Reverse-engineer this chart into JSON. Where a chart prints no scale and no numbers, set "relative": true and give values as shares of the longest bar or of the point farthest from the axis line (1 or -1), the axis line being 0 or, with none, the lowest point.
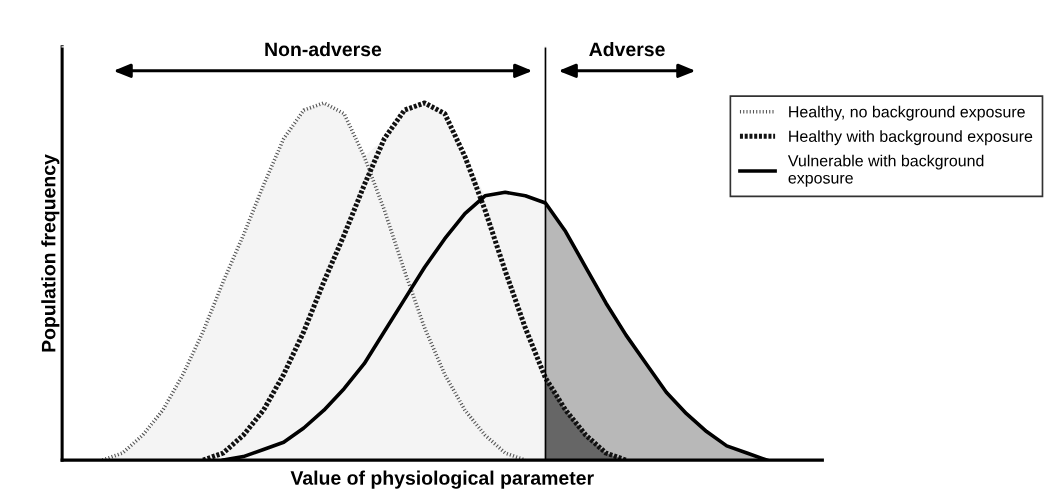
{
  "chart_data": {
    "type": "line",
    "relative": true,
    "xlabel": "Value of physiological parameter",
    "ylabel": "Population frequency",
    "categories": [
      null,
      null,
      null,
      null,
      null,
      null,
      null,
      null,
      null,
      null,
      null,
      null,
      null,
      null,
      null,
      null,
      null,
      null,
      null,
      null,
      null,
      null,
      null,
      null,
      null,
      null,
      null,
      null,
      null,
      null,
      null,
      null,
      null,
      null,
      null,
      null,
      null,
      null
    ],
    "series": [
      {
        "type": "area",
        "color": "#f4f4f4",
        "values": [
          null,
          null,
          0,
          0.02,
          0.07,
          0.14,
          0.24,
          0.36,
          0.5,
          0.63,
          0.77,
          0.9,
          0.98,
          1,
          0.97,
          0.85,
          0.9,
          0.98,
          1,
          0.97,
          0.85,
          0.74,
          0.75,
          0.74,
          0.72,
          null,
          null,
          null,
          null,
          null,
          null,
          null,
          null,
          null,
          null,
          null,
          null,
          null
        ]
      },
      {
        "type": "area",
        "color": "#b8b8b8",
        "values": [
          null,
          null,
          null,
          null,
          null,
          null,
          null,
          null,
          null,
          null,
          null,
          null,
          null,
          null,
          null,
          null,
          null,
          null,
          null,
          null,
          null,
          null,
          null,
          null,
          0.72,
          0.64,
          0.54,
          0.44,
          0.35,
          0.27,
          0.19,
          0.13,
          0.08,
          0.04,
          0.02,
          0,
          null,
          null
        ]
      },
      {
        "type": "area",
        "color": "#666666",
        "values": [
          null,
          null,
          null,
          null,
          null,
          null,
          null,
          null,
          null,
          null,
          null,
          null,
          null,
          null,
          null,
          null,
          null,
          null,
          null,
          null,
          null,
          null,
          null,
          null,
          0.23,
          0.14,
          0.07,
          0.02,
          0,
          null,
          null,
          null,
          null,
          null,
          null,
          null,
          null,
          null
        ]
      },
      {
        "name": "Healthy, no background exposure",
        "color": "#555555",
        "line_style": "dotted",
        "values": [
          null,
          null,
          0,
          0.02,
          0.07,
          0.14,
          0.24,
          0.36,
          0.5,
          0.63,
          0.77,
          0.9,
          0.98,
          1,
          0.97,
          0.85,
          0.7,
          0.53,
          0.37,
          0.24,
          0.14,
          0.07,
          0.02,
          0,
          null,
          null,
          null,
          null,
          null,
          null,
          null,
          null,
          null,
          null,
          null,
          null,
          null,
          null
        ]
      },
      {
        "name": "Healthy with background exposure",
        "color": "#111111",
        "line_style": "dotted",
        "values": [
          null,
          null,
          null,
          null,
          null,
          null,
          null,
          0,
          0.02,
          0.07,
          0.14,
          0.24,
          0.36,
          0.5,
          0.63,
          0.77,
          0.9,
          0.98,
          1,
          0.97,
          0.85,
          0.7,
          0.53,
          0.37,
          0.23,
          0.14,
          0.07,
          0.02,
          0,
          null,
          null,
          null,
          null,
          null,
          null,
          null,
          null,
          null
        ]
      },
      {
        "name": "Vulnerable with background\nexposure",
        "color": "#000000",
        "line_style": "solid",
        "values": [
          null,
          null,
          null,
          null,
          null,
          null,
          null,
          null,
          0,
          0.01,
          0.03,
          0.05,
          0.09,
          0.14,
          0.2,
          0.27,
          0.36,
          0.45,
          0.54,
          0.62,
          0.69,
          0.74,
          0.75,
          0.74,
          0.72,
          0.64,
          0.54,
          0.44,
          0.35,
          0.27,
          0.19,
          0.13,
          0.08,
          0.04,
          0.02,
          0,
          null,
          null
        ]
      }
    ],
    "annotations": [
      "Non-adverse",
      "Adverse"
    ],
    "legend": "right"
  }
}
